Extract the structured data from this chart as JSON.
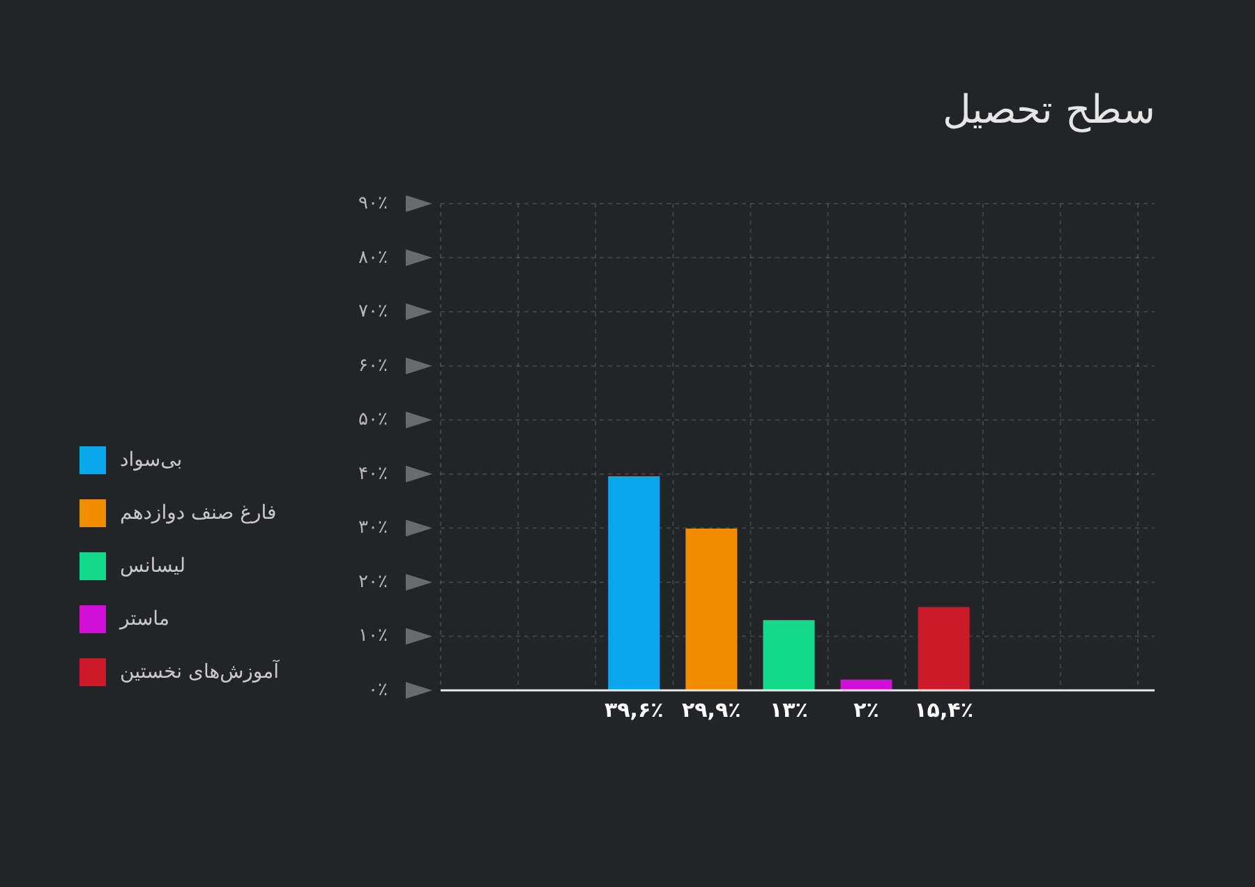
{
  "chart_data": {
    "type": "bar",
    "title": "سطح تحصیل",
    "categories": [
      null,
      null,
      null,
      null,
      null,
      null,
      null,
      null,
      null
    ],
    "series": [
      {
        "name": "بی‌سواد",
        "color": "#0aa6ee",
        "values": [
          null,
          null,
          39.6,
          null,
          null,
          null,
          null,
          null,
          null
        ],
        "value_labels": [
          null,
          null,
          "۳۹,۶٪",
          null,
          null,
          null,
          null,
          null,
          null
        ]
      },
      {
        "name": "فارغ صنف دوازدهم",
        "color": "#f28c00",
        "values": [
          null,
          null,
          null,
          29.9,
          null,
          null,
          null,
          null,
          null
        ],
        "value_labels": [
          null,
          null,
          null,
          "۲۹,۹٪",
          null,
          null,
          null,
          null,
          null
        ]
      },
      {
        "name": "لیسانس",
        "color": "#14d88a",
        "values": [
          null,
          null,
          null,
          null,
          13,
          null,
          null,
          null,
          null
        ],
        "value_labels": [
          null,
          null,
          null,
          null,
          "۱۳٪",
          null,
          null,
          null,
          null
        ]
      },
      {
        "name": "ماستر",
        "color": "#d010d8",
        "values": [
          null,
          null,
          null,
          null,
          null,
          2,
          null,
          null,
          null
        ],
        "value_labels": [
          null,
          null,
          null,
          null,
          null,
          "۲٪",
          null,
          null,
          null
        ]
      },
      {
        "name": "آموزش‌های نخستین",
        "color": "#cc1a28",
        "values": [
          null,
          null,
          null,
          null,
          null,
          null,
          15.4,
          null,
          null
        ],
        "value_labels": [
          null,
          null,
          null,
          null,
          null,
          null,
          "۱۵,۴٪",
          null,
          null
        ]
      }
    ],
    "ylim": [
      0,
      90
    ],
    "yticks": [
      {
        "value": 0,
        "label": "۰٪"
      },
      {
        "value": 10,
        "label": "۱۰٪"
      },
      {
        "value": 20,
        "label": "۲۰٪"
      },
      {
        "value": 30,
        "label": "۳۰٪"
      },
      {
        "value": 40,
        "label": "۴۰٪"
      },
      {
        "value": 50,
        "label": "۵۰٪"
      },
      {
        "value": 60,
        "label": "۶۰٪"
      },
      {
        "value": 70,
        "label": "۷۰٪"
      },
      {
        "value": 80,
        "label": "۸۰٪"
      },
      {
        "value": 90,
        "label": "۹۰٪"
      }
    ],
    "grid": true,
    "legend": "left",
    "tick_labels": "y"
  }
}
